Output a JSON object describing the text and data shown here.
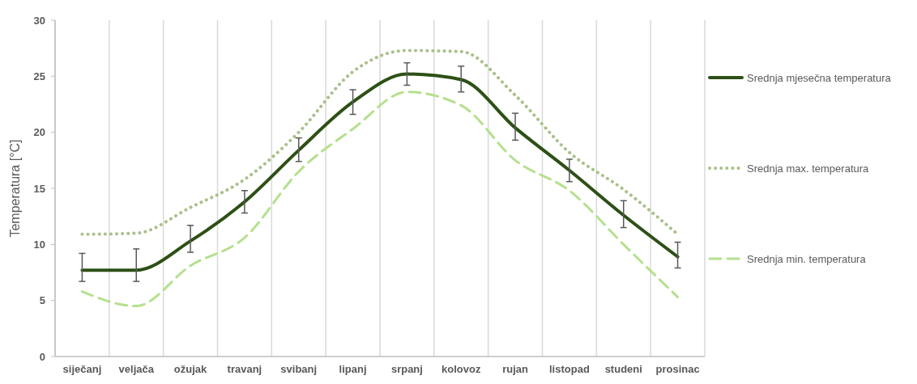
{
  "chart_data": {
    "type": "line",
    "ylabel": "Temperatura [°C]",
    "categories": [
      "siječanj",
      "veljača",
      "ožujak",
      "travanj",
      "svibanj",
      "lipanj",
      "srpanj",
      "kolovoz",
      "rujan",
      "listopad",
      "studeni",
      "prosinac"
    ],
    "series": [
      {
        "name": "Srednja mjesečna temperatura",
        "color": "#2d5016",
        "line_style": "solid",
        "values": [
          7.7,
          7.7,
          10.3,
          13.8,
          18.4,
          22.7,
          25.2,
          24.7,
          20.4,
          16.6,
          12.6,
          8.9
        ],
        "errors": [
          [
            6.7,
            9.2
          ],
          [
            6.7,
            9.6
          ],
          [
            9.3,
            11.7
          ],
          [
            12.8,
            14.8
          ],
          [
            17.4,
            19.5
          ],
          [
            21.6,
            23.8
          ],
          [
            24.2,
            26.2
          ],
          [
            23.6,
            25.9
          ],
          [
            19.3,
            21.7
          ],
          [
            15.6,
            17.6
          ],
          [
            11.5,
            13.9
          ],
          [
            7.9,
            10.2
          ]
        ]
      },
      {
        "name": "Srednja max. temperatura",
        "color": "#a9c08a",
        "line_style": "dotted",
        "values": [
          10.9,
          11.0,
          13.3,
          15.8,
          20.0,
          25.4,
          27.3,
          27.2,
          23.3,
          18.2,
          14.9,
          10.9
        ]
      },
      {
        "name": "Srednja min. temperatura",
        "color": "#b5e08f",
        "line_style": "dashed",
        "values": [
          5.8,
          4.5,
          8.1,
          10.6,
          16.5,
          20.3,
          23.6,
          22.4,
          17.5,
          14.8,
          10.0,
          5.3
        ]
      }
    ],
    "ylim": [
      0,
      30
    ],
    "yticks": [
      0,
      5,
      10,
      15,
      20,
      25,
      30
    ],
    "grid": "x",
    "legend": "right",
    "marker": "none"
  }
}
